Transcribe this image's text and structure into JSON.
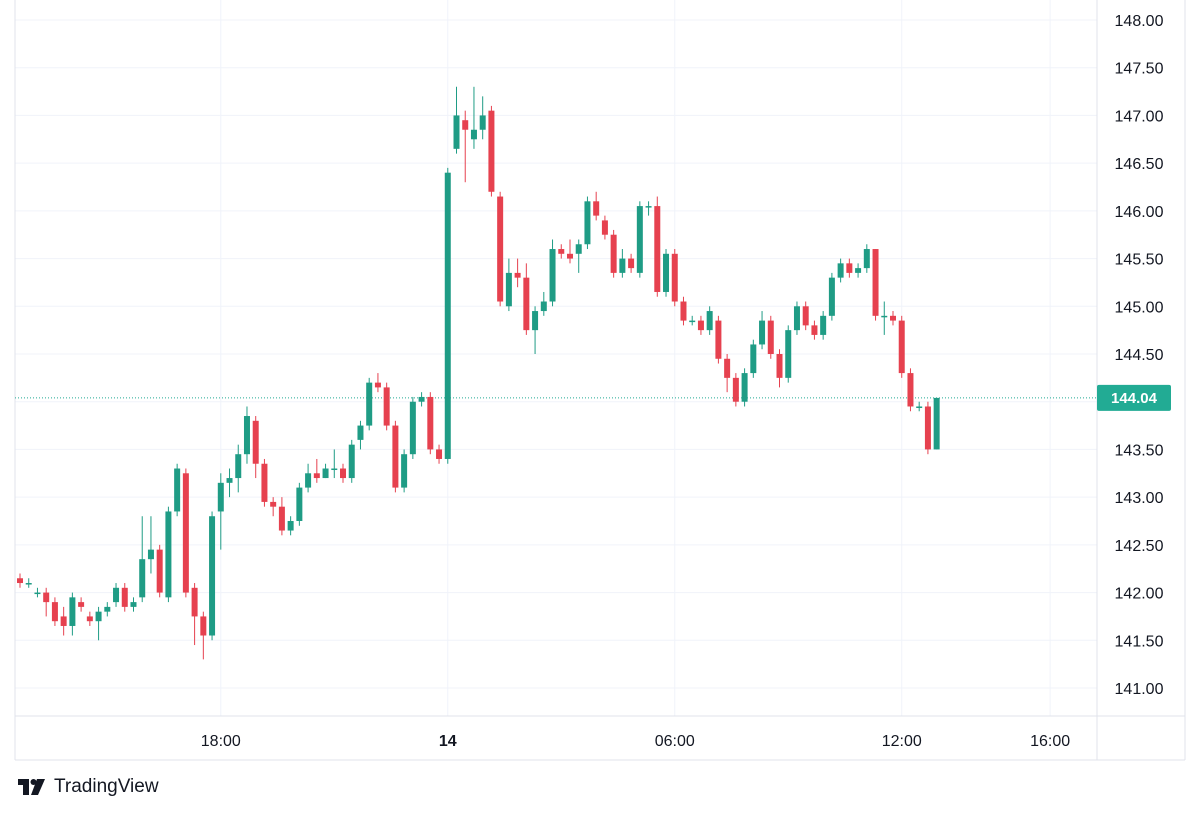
{
  "colors": {
    "up": "#26a69a",
    "down": "#ef5350",
    "up_fill": "#1f9c85",
    "down_fill": "#e6414f",
    "grid": "#f0f3fa",
    "last_price": "#22ab94"
  },
  "brand": {
    "name": "TradingView"
  },
  "chart_data": {
    "type": "candlestick",
    "y_ticks": [
      "141.00",
      "141.50",
      "142.00",
      "142.50",
      "143.00",
      "143.50",
      "144.00",
      "144.50",
      "145.00",
      "145.50",
      "146.00",
      "146.50",
      "147.00",
      "147.50",
      "148.00"
    ],
    "x_ticks": [
      {
        "label": "18:00",
        "bold": false,
        "i": 23
      },
      {
        "label": "14",
        "bold": true,
        "i": 49
      },
      {
        "label": "06:00",
        "bold": false,
        "i": 75
      },
      {
        "label": "12:00",
        "bold": false,
        "i": 101
      },
      {
        "label": "16:00",
        "bold": false,
        "i": 118
      }
    ],
    "ylim": [
      140.75,
      148.1
    ],
    "last_price": {
      "value": 144.04,
      "label": "144.04"
    },
    "candles": [
      [
        142.15,
        142.1,
        142.05,
        142.2
      ],
      [
        142.1,
        142.1,
        142.05,
        142.15
      ],
      [
        142.0,
        142.0,
        141.95,
        142.05
      ],
      [
        142.0,
        141.9,
        141.75,
        142.05
      ],
      [
        141.9,
        141.7,
        141.65,
        141.95
      ],
      [
        141.75,
        141.65,
        141.55,
        141.85
      ],
      [
        141.65,
        141.95,
        141.55,
        142.0
      ],
      [
        141.9,
        141.85,
        141.8,
        141.95
      ],
      [
        141.75,
        141.7,
        141.65,
        141.8
      ],
      [
        141.7,
        141.8,
        141.5,
        141.85
      ],
      [
        141.8,
        141.85,
        141.75,
        141.9
      ],
      [
        141.9,
        142.05,
        141.85,
        142.1
      ],
      [
        142.05,
        141.85,
        141.8,
        142.1
      ],
      [
        141.85,
        141.9,
        141.8,
        141.95
      ],
      [
        141.95,
        142.35,
        141.9,
        142.8
      ],
      [
        142.35,
        142.45,
        142.2,
        142.8
      ],
      [
        142.45,
        142.0,
        141.95,
        142.5
      ],
      [
        141.95,
        142.85,
        141.9,
        142.9
      ],
      [
        142.85,
        143.3,
        142.8,
        143.35
      ],
      [
        143.25,
        142.0,
        141.95,
        143.3
      ],
      [
        142.05,
        141.75,
        141.45,
        142.1
      ],
      [
        141.75,
        141.55,
        141.3,
        141.8
      ],
      [
        141.55,
        142.8,
        141.5,
        142.85
      ],
      [
        142.85,
        143.15,
        142.45,
        143.25
      ],
      [
        143.15,
        143.2,
        143.0,
        143.3
      ],
      [
        143.2,
        143.45,
        143.05,
        143.55
      ],
      [
        143.45,
        143.85,
        143.35,
        143.95
      ],
      [
        143.8,
        143.35,
        143.2,
        143.85
      ],
      [
        143.35,
        142.95,
        142.9,
        143.4
      ],
      [
        142.95,
        142.9,
        142.8,
        143.0
      ],
      [
        142.9,
        142.65,
        142.6,
        143.0
      ],
      [
        142.65,
        142.75,
        142.6,
        142.8
      ],
      [
        142.75,
        143.1,
        142.7,
        143.15
      ],
      [
        143.1,
        143.25,
        143.05,
        143.35
      ],
      [
        143.25,
        143.2,
        143.15,
        143.4
      ],
      [
        143.2,
        143.3,
        143.2,
        143.35
      ],
      [
        143.3,
        143.3,
        143.2,
        143.5
      ],
      [
        143.3,
        143.2,
        143.15,
        143.35
      ],
      [
        143.2,
        143.55,
        143.15,
        143.6
      ],
      [
        143.6,
        143.75,
        143.5,
        143.8
      ],
      [
        143.75,
        144.2,
        143.7,
        144.25
      ],
      [
        144.2,
        144.15,
        144.1,
        144.3
      ],
      [
        144.15,
        143.75,
        143.7,
        144.2
      ],
      [
        143.75,
        143.1,
        143.05,
        143.8
      ],
      [
        143.1,
        143.45,
        143.05,
        143.5
      ],
      [
        143.45,
        144.0,
        143.4,
        144.05
      ],
      [
        144.0,
        144.05,
        143.95,
        144.1
      ],
      [
        144.05,
        143.5,
        143.45,
        144.1
      ],
      [
        143.5,
        143.4,
        143.35,
        143.55
      ],
      [
        143.4,
        146.4,
        143.35,
        146.45
      ],
      [
        146.65,
        147.0,
        146.6,
        147.3
      ],
      [
        146.95,
        146.85,
        146.3,
        147.05
      ],
      [
        146.75,
        146.85,
        146.65,
        147.3
      ],
      [
        146.85,
        147.0,
        146.75,
        147.2
      ],
      [
        147.05,
        146.2,
        146.15,
        147.1
      ],
      [
        146.15,
        145.05,
        145.0,
        146.2
      ],
      [
        145.0,
        145.35,
        144.95,
        145.5
      ],
      [
        145.35,
        145.3,
        145.2,
        145.5
      ],
      [
        145.3,
        144.75,
        144.7,
        145.45
      ],
      [
        144.75,
        144.95,
        144.5,
        145.0
      ],
      [
        144.95,
        145.05,
        144.9,
        145.15
      ],
      [
        145.05,
        145.6,
        145.0,
        145.7
      ],
      [
        145.6,
        145.55,
        145.5,
        145.65
      ],
      [
        145.55,
        145.5,
        145.45,
        145.7
      ],
      [
        145.55,
        145.65,
        145.35,
        145.7
      ],
      [
        145.65,
        146.1,
        145.6,
        146.15
      ],
      [
        146.1,
        145.95,
        145.9,
        146.2
      ],
      [
        145.9,
        145.75,
        145.7,
        145.95
      ],
      [
        145.75,
        145.35,
        145.3,
        145.8
      ],
      [
        145.35,
        145.5,
        145.3,
        145.6
      ],
      [
        145.5,
        145.4,
        145.35,
        145.55
      ],
      [
        145.35,
        146.05,
        145.3,
        146.1
      ],
      [
        146.05,
        146.05,
        145.95,
        146.1
      ],
      [
        146.05,
        145.15,
        145.1,
        146.15
      ],
      [
        145.15,
        145.55,
        145.1,
        145.6
      ],
      [
        145.55,
        145.05,
        145.0,
        145.6
      ],
      [
        145.05,
        144.85,
        144.8,
        145.1
      ],
      [
        144.85,
        144.85,
        144.8,
        144.9
      ],
      [
        144.85,
        144.75,
        144.7,
        144.9
      ],
      [
        144.75,
        144.95,
        144.7,
        145.0
      ],
      [
        144.85,
        144.45,
        144.4,
        144.9
      ],
      [
        144.45,
        144.25,
        144.1,
        144.5
      ],
      [
        144.25,
        144.0,
        143.95,
        144.3
      ],
      [
        144.0,
        144.3,
        143.95,
        144.35
      ],
      [
        144.3,
        144.6,
        144.25,
        144.65
      ],
      [
        144.6,
        144.85,
        144.55,
        144.95
      ],
      [
        144.85,
        144.5,
        144.45,
        144.9
      ],
      [
        144.5,
        144.25,
        144.15,
        144.55
      ],
      [
        144.25,
        144.75,
        144.2,
        144.8
      ],
      [
        144.75,
        145.0,
        144.7,
        145.05
      ],
      [
        145.0,
        144.8,
        144.75,
        145.05
      ],
      [
        144.8,
        144.7,
        144.65,
        144.85
      ],
      [
        144.7,
        144.9,
        144.65,
        144.95
      ],
      [
        144.9,
        145.3,
        144.85,
        145.35
      ],
      [
        145.3,
        145.45,
        145.25,
        145.5
      ],
      [
        145.45,
        145.35,
        145.3,
        145.5
      ],
      [
        145.35,
        145.4,
        145.3,
        145.45
      ],
      [
        145.4,
        145.6,
        145.35,
        145.65
      ],
      [
        145.6,
        144.9,
        144.85,
        145.6
      ],
      [
        144.9,
        144.9,
        144.7,
        145.05
      ],
      [
        144.9,
        144.85,
        144.8,
        144.95
      ],
      [
        144.85,
        144.3,
        144.25,
        144.9
      ],
      [
        144.3,
        143.95,
        143.9,
        144.35
      ],
      [
        143.95,
        143.95,
        143.9,
        144.0
      ],
      [
        143.95,
        143.5,
        143.45,
        144.0
      ],
      [
        143.5,
        144.04,
        143.5,
        144.04
      ]
    ]
  }
}
